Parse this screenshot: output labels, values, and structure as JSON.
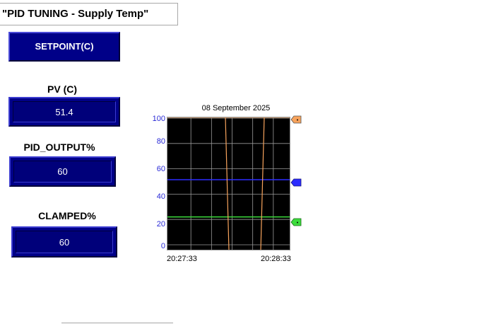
{
  "title": "\"PID TUNING - Supply Temp\"",
  "setpoint_button": "SETPOINT(C)",
  "pv": {
    "label": "PV (C)",
    "value": "51.4"
  },
  "pid_output": {
    "label": "PID_OUTPUT%",
    "value": "60"
  },
  "clamped": {
    "label": "CLAMPED%",
    "value": "60"
  },
  "trend": {
    "date": "08 September 2025",
    "x_start": "20:27:33",
    "x_end": "20:28:33",
    "y_ticks": [
      "100",
      "80",
      "60",
      "40",
      "20",
      "0"
    ],
    "colors": {
      "background": "#000000",
      "grid": "#9a9a9a",
      "orange": "#f7a35c",
      "blue": "#2c2cff",
      "green": "#3cdc3c",
      "axis_text": "#2a2ad6"
    },
    "markers": [
      {
        "color": "#f7a35c",
        "value": 100
      },
      {
        "color": "#2c2cff",
        "value": 51.4
      },
      {
        "color": "#3cdc3c",
        "value": 22
      }
    ]
  },
  "chart_data": {
    "type": "line",
    "title": "08 September 2025",
    "ylim": [
      0,
      100
    ],
    "x_ticks": [
      "20:27:33",
      "20:28:33"
    ],
    "grid": true,
    "series": [
      {
        "color": "#2c2cff",
        "values": [
          51.4,
          51.4
        ]
      },
      {
        "color": "#3cdc3c",
        "values": [
          22,
          22
        ]
      },
      {
        "color": "#f7a35c",
        "values": [
          100,
          0
        ]
      }
    ]
  }
}
